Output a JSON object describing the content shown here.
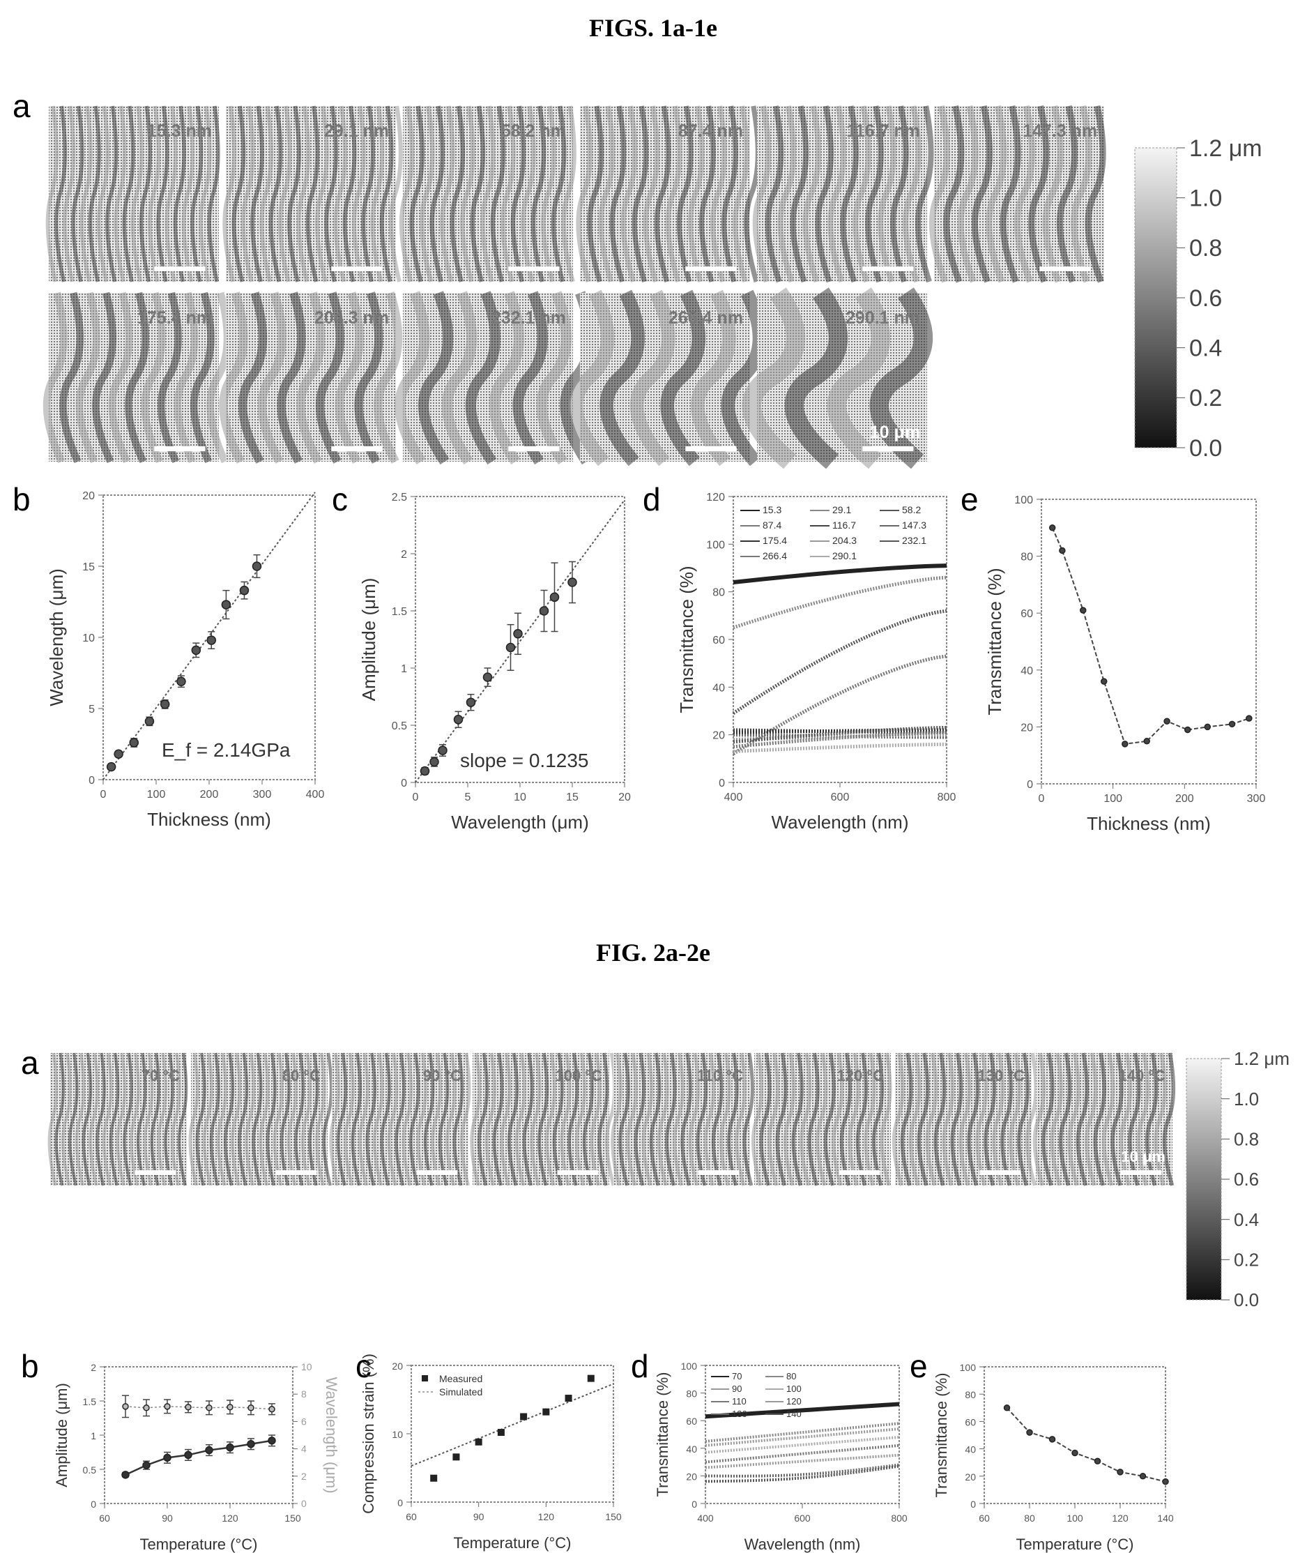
{
  "figures": [
    {
      "title": "FIGS. 1a-1e",
      "panel_a_label": "a",
      "images": [
        "15.3 nm",
        "29.1 nm",
        "58.2 nm",
        "87.4 nm",
        "116.7 nm",
        "147.3 nm",
        "175.4 nm",
        "204.3 nm",
        "232.1 nm",
        "266.4 nm",
        "290.1 nm"
      ],
      "scale_bar": "10 μm",
      "colorbar": {
        "unit_top": "1.2 μm",
        "ticks": [
          "1.0",
          "0.8",
          "0.6",
          "0.4",
          "0.2",
          "0.0"
        ]
      }
    },
    {
      "title": "FIG. 2a-2e",
      "panel_a_label": "a",
      "images": [
        "70 °C",
        "80 °C",
        "90 °C",
        "100 °C",
        "110 °C",
        "120 °C",
        "130 °C",
        "140 °C"
      ],
      "scale_bar": "10 μm",
      "colorbar": {
        "unit_top": "1.2 μm",
        "ticks": [
          "1.0",
          "0.8",
          "0.6",
          "0.4",
          "0.2",
          "0.0"
        ]
      }
    }
  ],
  "chart_data": [
    {
      "id": "fig1b",
      "panel": "b",
      "type": "scatter",
      "xlabel": "Thickness (nm)",
      "ylabel": "Wavelength (μm)",
      "xlim": [
        0,
        400
      ],
      "ylim": [
        0,
        20
      ],
      "xticks": [
        0,
        100,
        200,
        300,
        400
      ],
      "yticks": [
        0,
        5,
        10,
        15,
        20
      ],
      "x": [
        15.3,
        29.1,
        58.2,
        87.4,
        116.7,
        147.3,
        175.4,
        204.3,
        232.1,
        266.4,
        290.1
      ],
      "y": [
        0.9,
        1.8,
        2.6,
        4.1,
        5.3,
        6.9,
        9.1,
        9.8,
        12.3,
        13.3,
        15.0
      ],
      "err": [
        0.2,
        0.2,
        0.3,
        0.3,
        0.3,
        0.4,
        0.5,
        0.6,
        1.0,
        0.6,
        0.8
      ],
      "fit": [
        [
          0,
          0.0
        ],
        [
          400,
          20.2
        ]
      ],
      "annotation": "E_f = 2.14GPa"
    },
    {
      "id": "fig1c",
      "panel": "c",
      "type": "scatter",
      "xlabel": "Wavelength (μm)",
      "ylabel": "Amplitude (μm)",
      "xlim": [
        0,
        20
      ],
      "ylim": [
        0.0,
        2.5
      ],
      "xticks": [
        0,
        5,
        10,
        15,
        20
      ],
      "yticks": [
        0.0,
        0.5,
        1.0,
        1.5,
        2.0,
        2.5
      ],
      "x": [
        0.9,
        1.8,
        2.6,
        4.1,
        5.3,
        6.9,
        9.1,
        9.8,
        12.3,
        13.3,
        15.0
      ],
      "y": [
        0.1,
        0.18,
        0.28,
        0.55,
        0.7,
        0.92,
        1.18,
        1.3,
        1.5,
        1.62,
        1.75
      ],
      "err": [
        0.03,
        0.04,
        0.05,
        0.07,
        0.07,
        0.08,
        0.2,
        0.18,
        0.18,
        0.3,
        0.18
      ],
      "fit": [
        [
          0,
          0.0
        ],
        [
          20,
          2.47
        ]
      ],
      "annotation": "slope = 0.1235"
    },
    {
      "id": "fig1d",
      "panel": "d",
      "type": "line",
      "xlabel": "Wavelength (nm)",
      "ylabel": "Transmittance (%)",
      "xlim": [
        400,
        800
      ],
      "ylim": [
        0,
        120
      ],
      "xticks": [
        400,
        600,
        800
      ],
      "yticks": [
        0,
        20,
        40,
        60,
        80,
        100,
        120
      ],
      "legend": [
        "15.3",
        "29.1",
        "58.2",
        "87.4",
        "116.7",
        "147.3",
        "175.4",
        "204.3",
        "232.1",
        "266.4",
        "290.1"
      ],
      "series": [
        {
          "name": "15.3",
          "start": 84,
          "end": 91
        },
        {
          "name": "29.1",
          "start": 65,
          "end": 86
        },
        {
          "name": "58.2",
          "start": 29,
          "end": 72
        },
        {
          "name": "87.4",
          "start": 12,
          "end": 53
        },
        {
          "name": "116.7",
          "start": 22,
          "end": 21
        },
        {
          "name": "147.3",
          "start": 20,
          "end": 19
        },
        {
          "name": "175.4",
          "start": 21,
          "end": 22
        },
        {
          "name": "204.3",
          "start": 18,
          "end": 20
        },
        {
          "name": "232.1",
          "start": 17,
          "end": 23
        },
        {
          "name": "266.4",
          "start": 15,
          "end": 21
        },
        {
          "name": "290.1",
          "start": 13,
          "end": 16
        }
      ]
    },
    {
      "id": "fig1e",
      "panel": "e",
      "type": "line",
      "xlabel": "Thickness (nm)",
      "ylabel": "Transmittance (%)",
      "xlim": [
        0,
        300
      ],
      "ylim": [
        0,
        100
      ],
      "xticks": [
        0,
        100,
        200,
        300
      ],
      "yticks": [
        0,
        20,
        40,
        60,
        80,
        100
      ],
      "x": [
        15.3,
        29.1,
        58.2,
        87.4,
        116.7,
        147.3,
        175.4,
        204.3,
        232.1,
        266.4,
        290.1
      ],
      "y": [
        90,
        82,
        61,
        36,
        14,
        15,
        22,
        19,
        20,
        21,
        23
      ]
    },
    {
      "id": "fig2b",
      "panel": "b",
      "type": "line",
      "xlabel": "Temperature (°C)",
      "ylabel": "Amplitude (μm)",
      "ylabel2": "Wavelength (μm)",
      "xlim": [
        60,
        150
      ],
      "ylim": [
        0.0,
        2.0
      ],
      "ylim2": [
        0,
        10
      ],
      "xticks": [
        60,
        90,
        120,
        150
      ],
      "yticks": [
        0.0,
        0.5,
        1.0,
        1.5,
        2.0
      ],
      "yticks2": [
        0,
        2,
        4,
        6,
        8,
        10
      ],
      "x": [
        70,
        80,
        90,
        100,
        110,
        120,
        130,
        140
      ],
      "series": [
        {
          "name": "Amplitude",
          "axis": "left",
          "values": [
            0.42,
            0.56,
            0.67,
            0.71,
            0.78,
            0.82,
            0.87,
            0.92
          ],
          "err": [
            0.03,
            0.06,
            0.08,
            0.08,
            0.08,
            0.08,
            0.08,
            0.08
          ]
        },
        {
          "name": "Wavelength",
          "axis": "right",
          "values": [
            7.1,
            7.0,
            7.1,
            7.05,
            7.0,
            7.05,
            7.0,
            6.9
          ],
          "err": [
            0.8,
            0.6,
            0.5,
            0.4,
            0.5,
            0.5,
            0.5,
            0.4
          ]
        }
      ]
    },
    {
      "id": "fig2c",
      "panel": "c",
      "type": "scatter",
      "xlabel": "Temperature (°C)",
      "ylabel": "Compression strain (%)",
      "xlim": [
        60,
        150
      ],
      "ylim": [
        0,
        20
      ],
      "xticks": [
        60,
        90,
        120,
        150
      ],
      "yticks": [
        0,
        10,
        20
      ],
      "legend": [
        "Measured",
        "Simulated"
      ],
      "x": [
        70,
        80,
        90,
        100,
        110,
        120,
        130,
        140
      ],
      "y": [
        3.5,
        6.6,
        8.8,
        10.2,
        12.5,
        13.2,
        15.2,
        18.1
      ],
      "fit": [
        [
          60,
          5.3
        ],
        [
          150,
          17.3
        ]
      ]
    },
    {
      "id": "fig2d",
      "panel": "d",
      "type": "line",
      "xlabel": "Wavelength (nm)",
      "ylabel": "Transmittance (%)",
      "xlim": [
        400,
        800
      ],
      "ylim": [
        0,
        100
      ],
      "xticks": [
        400,
        600,
        800
      ],
      "yticks": [
        0,
        20,
        40,
        60,
        80,
        100
      ],
      "legend": [
        "70",
        "80",
        "90",
        "100",
        "110",
        "120",
        "130",
        "140"
      ],
      "series": [
        {
          "name": "70",
          "start": 63,
          "end": 72
        },
        {
          "name": "80",
          "start": 45,
          "end": 58
        },
        {
          "name": "90",
          "start": 42,
          "end": 54
        },
        {
          "name": "100",
          "start": 37,
          "end": 48
        },
        {
          "name": "110",
          "start": 30,
          "end": 42
        },
        {
          "name": "120",
          "start": 26,
          "end": 35
        },
        {
          "name": "130",
          "start": 20,
          "end": 28
        },
        {
          "name": "140",
          "start": 16,
          "end": 27
        }
      ]
    },
    {
      "id": "fig2e",
      "panel": "e",
      "type": "line",
      "xlabel": "Temperature (°C)",
      "ylabel": "Transmittance (%)",
      "xlim": [
        60,
        140
      ],
      "ylim": [
        0,
        100
      ],
      "xticks": [
        60,
        80,
        100,
        120,
        140
      ],
      "yticks": [
        0,
        20,
        40,
        60,
        80,
        100
      ],
      "x": [
        70,
        80,
        90,
        100,
        110,
        120,
        130,
        140
      ],
      "y": [
        70,
        52,
        47,
        37,
        31,
        23,
        20,
        16
      ]
    }
  ]
}
